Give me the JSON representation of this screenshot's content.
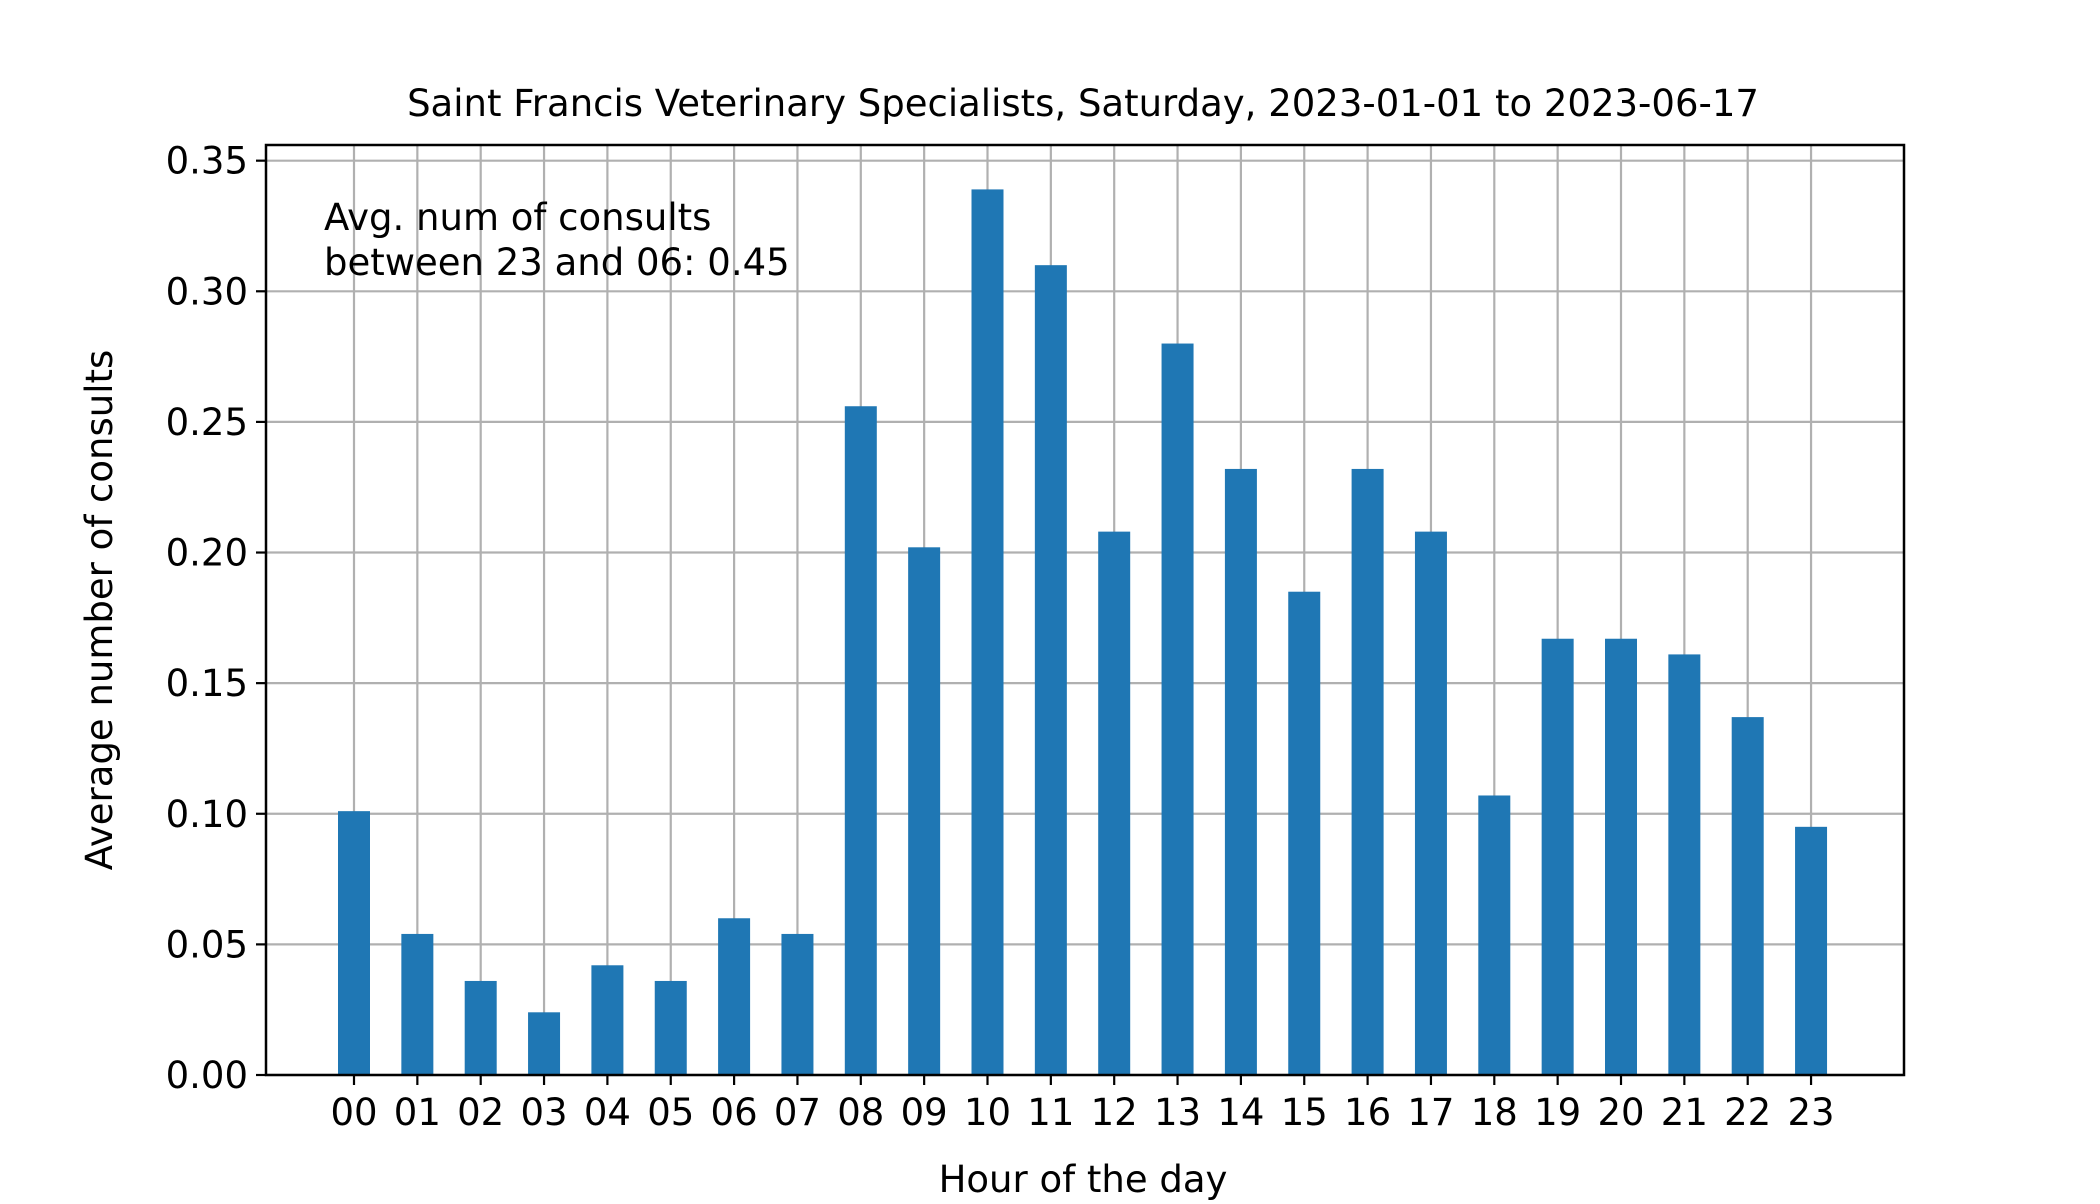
{
  "chart_data": {
    "type": "bar",
    "title": "Saint Francis Veterinary Specialists, Saturday, 2023-01-01 to 2023-06-17",
    "xlabel": "Hour of the day",
    "ylabel": "Average number of consults",
    "annotation": [
      "Avg. num of consults",
      "between 23 and 06: 0.45"
    ],
    "categories": [
      "00",
      "01",
      "02",
      "03",
      "04",
      "05",
      "06",
      "07",
      "08",
      "09",
      "10",
      "11",
      "12",
      "13",
      "14",
      "15",
      "16",
      "17",
      "18",
      "19",
      "20",
      "21",
      "22",
      "23"
    ],
    "values": [
      0.101,
      0.054,
      0.036,
      0.024,
      0.042,
      0.036,
      0.06,
      0.054,
      0.256,
      0.202,
      0.339,
      0.31,
      0.208,
      0.28,
      0.232,
      0.185,
      0.232,
      0.208,
      0.107,
      0.167,
      0.167,
      0.161,
      0.137,
      0.095
    ],
    "ylim": [
      0,
      0.356
    ],
    "yticks": [
      "0.00",
      "0.05",
      "0.10",
      "0.15",
      "0.20",
      "0.25",
      "0.30",
      "0.35"
    ],
    "grid": true,
    "bar_color": "#1f77b4",
    "grid_color": "#b0b0b0",
    "axis_color": "#000000"
  }
}
